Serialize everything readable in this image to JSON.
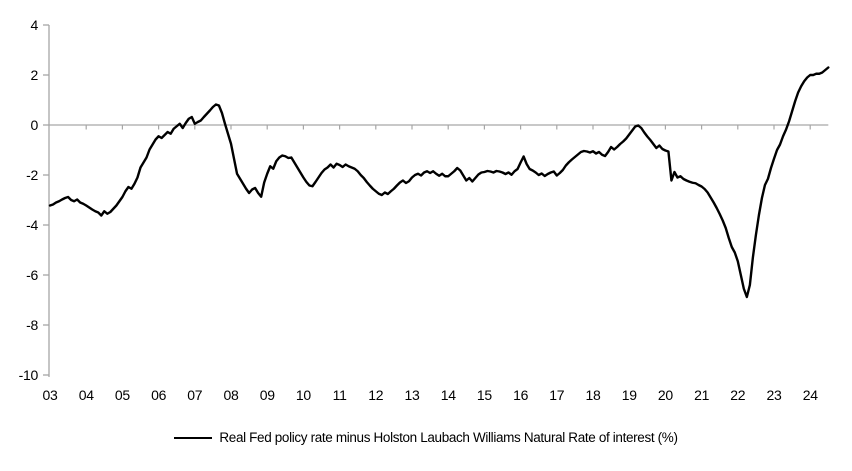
{
  "colors": {
    "background": "#ffffff",
    "axis": "#a6a6a6",
    "zero_gridline": "#a6a6a6",
    "line": "#000000",
    "text": "#000000"
  },
  "chart_data": {
    "type": "line",
    "title": "",
    "xlabel": "",
    "ylabel": "",
    "ylim": [
      -10,
      4
    ],
    "y_ticks": [
      4,
      2,
      0,
      -2,
      -4,
      -6,
      -8,
      -10
    ],
    "x_tick_labels": [
      "03",
      "04",
      "05",
      "06",
      "07",
      "08",
      "09",
      "10",
      "11",
      "12",
      "13",
      "14",
      "15",
      "16",
      "17",
      "18",
      "19",
      "20",
      "21",
      "22",
      "23",
      "24"
    ],
    "grid": false,
    "zero_line": true,
    "legend_position": "bottom-center",
    "frequency": "monthly",
    "x_start": {
      "year": 2003,
      "month": 1
    },
    "series": [
      {
        "name": "Real Fed policy rate minus Holston Laubach Williams Natural Rate of interest (%)",
        "color": "#000000",
        "values": [
          -3.22,
          -3.18,
          -3.1,
          -3.05,
          -2.98,
          -2.92,
          -2.88,
          -3.0,
          -3.05,
          -2.98,
          -3.1,
          -3.15,
          -3.22,
          -3.3,
          -3.38,
          -3.45,
          -3.5,
          -3.62,
          -3.45,
          -3.55,
          -3.48,
          -3.35,
          -3.22,
          -3.05,
          -2.88,
          -2.65,
          -2.48,
          -2.55,
          -2.35,
          -2.1,
          -1.7,
          -1.5,
          -1.3,
          -0.98,
          -0.78,
          -0.58,
          -0.45,
          -0.52,
          -0.4,
          -0.28,
          -0.35,
          -0.15,
          -0.05,
          0.05,
          -0.12,
          0.08,
          0.25,
          0.32,
          0.05,
          0.12,
          0.18,
          0.32,
          0.45,
          0.58,
          0.72,
          0.82,
          0.78,
          0.48,
          0.05,
          -0.35,
          -0.75,
          -1.35,
          -1.95,
          -2.15,
          -2.35,
          -2.55,
          -2.72,
          -2.58,
          -2.52,
          -2.72,
          -2.87,
          -2.3,
          -1.95,
          -1.65,
          -1.75,
          -1.45,
          -1.3,
          -1.22,
          -1.25,
          -1.32,
          -1.3,
          -1.5,
          -1.7,
          -1.9,
          -2.1,
          -2.28,
          -2.42,
          -2.45,
          -2.28,
          -2.1,
          -1.92,
          -1.78,
          -1.7,
          -1.58,
          -1.7,
          -1.55,
          -1.6,
          -1.68,
          -1.58,
          -1.65,
          -1.7,
          -1.75,
          -1.85,
          -2.0,
          -2.12,
          -2.28,
          -2.42,
          -2.55,
          -2.65,
          -2.75,
          -2.8,
          -2.7,
          -2.76,
          -2.65,
          -2.55,
          -2.42,
          -2.3,
          -2.22,
          -2.32,
          -2.25,
          -2.1,
          -2.0,
          -1.95,
          -2.02,
          -1.9,
          -1.85,
          -1.92,
          -1.85,
          -1.95,
          -2.03,
          -1.95,
          -2.05,
          -2.05,
          -1.95,
          -1.85,
          -1.72,
          -1.82,
          -2.02,
          -2.22,
          -2.12,
          -2.26,
          -2.12,
          -1.98,
          -1.9,
          -1.88,
          -1.84,
          -1.86,
          -1.9,
          -1.84,
          -1.86,
          -1.9,
          -1.96,
          -1.9,
          -1.99,
          -1.85,
          -1.76,
          -1.5,
          -1.26,
          -1.56,
          -1.76,
          -1.82,
          -1.9,
          -2.0,
          -1.94,
          -2.04,
          -1.96,
          -1.9,
          -1.86,
          -2.02,
          -1.92,
          -1.8,
          -1.62,
          -1.49,
          -1.38,
          -1.28,
          -1.18,
          -1.08,
          -1.04,
          -1.06,
          -1.1,
          -1.05,
          -1.14,
          -1.08,
          -1.19,
          -1.24,
          -1.08,
          -0.88,
          -0.98,
          -0.88,
          -0.76,
          -0.66,
          -0.54,
          -0.38,
          -0.22,
          -0.06,
          -0.02,
          -0.12,
          -0.3,
          -0.46,
          -0.6,
          -0.76,
          -0.92,
          -0.82,
          -0.96,
          -1.02,
          -1.06,
          -2.22,
          -1.88,
          -2.1,
          -2.05,
          -2.16,
          -2.22,
          -2.27,
          -2.31,
          -2.33,
          -2.4,
          -2.46,
          -2.56,
          -2.7,
          -2.9,
          -3.1,
          -3.32,
          -3.56,
          -3.82,
          -4.12,
          -4.52,
          -4.88,
          -5.1,
          -5.45,
          -6.0,
          -6.55,
          -6.88,
          -6.4,
          -5.3,
          -4.4,
          -3.6,
          -2.92,
          -2.4,
          -2.15,
          -1.72,
          -1.35,
          -1.0,
          -0.78,
          -0.45,
          -0.18,
          0.15,
          0.55,
          0.95,
          1.3,
          1.55,
          1.75,
          1.9,
          2.0,
          2.0,
          2.05,
          2.05,
          2.1,
          2.2,
          2.3
        ]
      }
    ],
    "legend": [
      "Real Fed policy rate minus Holston Laubach Williams Natural Rate of interest (%)"
    ]
  }
}
